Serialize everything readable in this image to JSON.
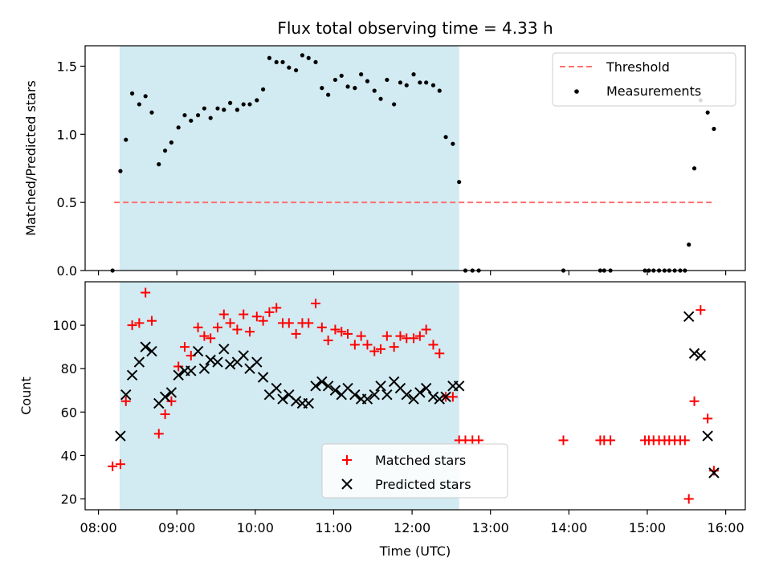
{
  "title": "Flux total observing time = 4.33 h",
  "colors": {
    "shade": "#add8e6",
    "threshold": "#ff7070",
    "measurements": "#000000",
    "matched": "#ff0000",
    "predicted": "#000000"
  },
  "chart_data": [
    {
      "type": "scatter",
      "ylabel": "Matched/Predicted stars",
      "ylim": [
        0,
        1.65
      ],
      "yticks": [
        0.0,
        0.5,
        1.0,
        1.5
      ],
      "ytick_labels": [
        "0.0",
        "0.5",
        "1.0",
        "1.5"
      ],
      "shaded_interval_hours": [
        8.27,
        12.6
      ],
      "legend": {
        "placement": "top-right",
        "entries": [
          "Threshold",
          "Measurements"
        ]
      },
      "threshold": {
        "name": "Threshold",
        "value": 0.5,
        "x_range_hours": [
          8.2,
          15.85
        ]
      },
      "series": [
        {
          "name": "Measurements",
          "x_hours": [
            8.18,
            8.28,
            8.35,
            8.43,
            8.52,
            8.6,
            8.68,
            8.77,
            8.85,
            8.93,
            9.02,
            9.1,
            9.18,
            9.27,
            9.35,
            9.43,
            9.52,
            9.6,
            9.68,
            9.77,
            9.85,
            9.93,
            10.02,
            10.1,
            10.18,
            10.27,
            10.35,
            10.43,
            10.52,
            10.6,
            10.68,
            10.77,
            10.85,
            10.93,
            11.02,
            11.1,
            11.18,
            11.27,
            11.35,
            11.43,
            11.52,
            11.6,
            11.68,
            11.77,
            11.85,
            11.93,
            12.02,
            12.1,
            12.18,
            12.27,
            12.35,
            12.43,
            12.52,
            12.6,
            12.68,
            12.77,
            12.85,
            13.93,
            14.4,
            14.45,
            14.53,
            14.97,
            15.02,
            15.08,
            15.15,
            15.22,
            15.28,
            15.35,
            15.42,
            15.48,
            15.53,
            15.6,
            15.68,
            15.77,
            15.85
          ],
          "y": [
            0.0,
            0.73,
            0.96,
            1.3,
            1.22,
            1.28,
            1.16,
            0.78,
            0.88,
            0.94,
            1.05,
            1.14,
            1.1,
            1.14,
            1.19,
            1.12,
            1.19,
            1.18,
            1.23,
            1.18,
            1.22,
            1.22,
            1.25,
            1.33,
            1.56,
            1.53,
            1.53,
            1.49,
            1.47,
            1.58,
            1.56,
            1.53,
            1.34,
            1.29,
            1.4,
            1.43,
            1.35,
            1.34,
            1.44,
            1.39,
            1.32,
            1.26,
            1.4,
            1.22,
            1.38,
            1.36,
            1.44,
            1.38,
            1.38,
            1.36,
            1.32,
            0.98,
            0.93,
            0.65,
            0.0,
            0.0,
            0.0,
            0.0,
            0.0,
            0.0,
            0.0,
            0.0,
            0.0,
            0.0,
            0.0,
            0.0,
            0.0,
            0.0,
            0.0,
            0.0,
            0.19,
            0.75,
            1.25,
            1.16,
            1.04
          ]
        }
      ]
    },
    {
      "type": "scatter",
      "ylabel": "Count",
      "xlabel": "Time (UTC)",
      "ylim": [
        15,
        120
      ],
      "yticks": [
        20,
        40,
        60,
        80,
        100
      ],
      "ytick_labels": [
        "20",
        "40",
        "60",
        "80",
        "100"
      ],
      "xlim_hours": [
        7.83,
        16.25
      ],
      "xticks_hours": [
        8,
        9,
        10,
        11,
        12,
        13,
        14,
        15,
        16
      ],
      "xtick_labels": [
        "08:00",
        "09:00",
        "10:00",
        "11:00",
        "12:00",
        "13:00",
        "14:00",
        "15:00",
        "16:00"
      ],
      "shaded_interval_hours": [
        8.27,
        12.6
      ],
      "legend": {
        "placement": "lower-center",
        "entries": [
          "Matched stars",
          "Predicted stars"
        ]
      },
      "series": [
        {
          "name": "Matched stars",
          "marker": "plus",
          "x_hours": [
            8.18,
            8.28,
            8.35,
            8.43,
            8.52,
            8.6,
            8.68,
            8.77,
            8.85,
            8.93,
            9.02,
            9.1,
            9.18,
            9.27,
            9.35,
            9.43,
            9.52,
            9.6,
            9.68,
            9.77,
            9.85,
            9.93,
            10.02,
            10.1,
            10.18,
            10.27,
            10.35,
            10.43,
            10.52,
            10.6,
            10.68,
            10.77,
            10.85,
            10.93,
            11.02,
            11.1,
            11.18,
            11.27,
            11.35,
            11.43,
            11.52,
            11.6,
            11.68,
            11.77,
            11.85,
            11.93,
            12.02,
            12.1,
            12.18,
            12.27,
            12.35,
            12.43,
            12.52,
            12.6,
            12.68,
            12.77,
            12.85,
            13.93,
            14.4,
            14.45,
            14.53,
            14.97,
            15.02,
            15.08,
            15.15,
            15.22,
            15.28,
            15.35,
            15.42,
            15.48,
            15.53,
            15.6,
            15.68,
            15.77,
            15.85
          ],
          "y": [
            35,
            36,
            65,
            100,
            101,
            115,
            102,
            50,
            59,
            65,
            81,
            90,
            86,
            99,
            95,
            94,
            99,
            105,
            101,
            98,
            105,
            97,
            104,
            102,
            106,
            108,
            101,
            101,
            96,
            101,
            101,
            110,
            99,
            93,
            98,
            97,
            96,
            91,
            95,
            91,
            88,
            89,
            95,
            90,
            95,
            94,
            94,
            95,
            98,
            91,
            87,
            67,
            67,
            47,
            47,
            47,
            47,
            47,
            47,
            47,
            47,
            47,
            47,
            47,
            47,
            47,
            47,
            47,
            47,
            47,
            20,
            65,
            107,
            57,
            33
          ]
        },
        {
          "name": "Predicted stars",
          "marker": "x",
          "x_hours": [
            8.28,
            8.35,
            8.43,
            8.52,
            8.6,
            8.68,
            8.77,
            8.85,
            8.93,
            9.02,
            9.1,
            9.18,
            9.27,
            9.35,
            9.43,
            9.52,
            9.6,
            9.68,
            9.77,
            9.85,
            9.93,
            10.02,
            10.1,
            10.18,
            10.27,
            10.35,
            10.43,
            10.52,
            10.6,
            10.68,
            10.77,
            10.85,
            10.93,
            11.02,
            11.1,
            11.18,
            11.27,
            11.35,
            11.43,
            11.52,
            11.6,
            11.68,
            11.77,
            11.85,
            11.93,
            12.02,
            12.1,
            12.18,
            12.27,
            12.35,
            12.43,
            12.52,
            12.6,
            15.53,
            15.6,
            15.68,
            15.77,
            15.85
          ],
          "y": [
            49,
            68,
            77,
            83,
            90,
            88,
            64,
            67,
            69,
            77,
            79,
            79,
            88,
            80,
            84,
            83,
            89,
            82,
            83,
            86,
            80,
            83,
            76,
            68,
            71,
            66,
            68,
            65,
            64,
            64,
            72,
            74,
            72,
            70,
            68,
            71,
            68,
            66,
            66,
            68,
            72,
            68,
            74,
            71,
            68,
            66,
            69,
            71,
            67,
            66,
            67,
            72,
            72,
            104,
            87,
            86,
            49,
            32
          ]
        }
      ]
    }
  ]
}
